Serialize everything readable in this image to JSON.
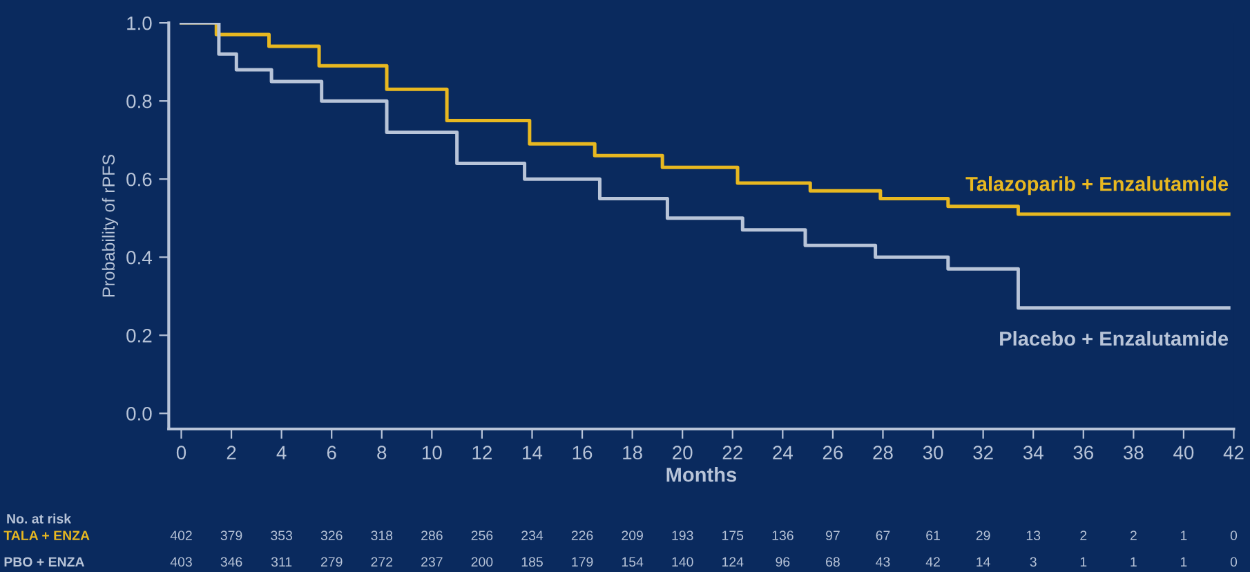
{
  "chart_data": {
    "type": "step",
    "xlabel": "Months",
    "ylabel": "Probability of rPFS",
    "xlim": [
      -0.5,
      42
    ],
    "ylim": [
      -0.04,
      1.0
    ],
    "xticks": [
      0,
      2,
      4,
      6,
      8,
      10,
      12,
      14,
      16,
      18,
      20,
      22,
      24,
      26,
      28,
      30,
      32,
      34,
      36,
      38,
      40,
      42
    ],
    "yticks": [
      {
        "value": 0,
        "label": "0.0"
      },
      0.2,
      0.4,
      0.6,
      0.8,
      {
        "value": 1,
        "label": "1.0"
      }
    ],
    "grid": false,
    "legend": false,
    "series": [
      {
        "name": "Talazoparib + Enzalutamide",
        "color": "#e8b820",
        "x": [
          0,
          1.4,
          3.5,
          5.5,
          8.2,
          10.6,
          13.9,
          16.5,
          19.2,
          22.2,
          25.1,
          27.9,
          30.6,
          33.4,
          41.8
        ],
        "values": [
          1.0,
          0.97,
          0.94,
          0.89,
          0.83,
          0.75,
          0.69,
          0.66,
          0.63,
          0.59,
          0.57,
          0.55,
          0.53,
          0.51,
          0.51
        ]
      },
      {
        "name": "Placebo + Enzalutamide",
        "color": "#b8c4d8",
        "x": [
          0,
          1.5,
          2.2,
          3.6,
          5.6,
          8.2,
          11.0,
          13.7,
          16.7,
          19.4,
          22.4,
          24.9,
          27.7,
          30.6,
          33.4,
          41.8
        ],
        "values": [
          1.0,
          0.92,
          0.88,
          0.85,
          0.8,
          0.72,
          0.64,
          0.6,
          0.55,
          0.5,
          0.47,
          0.43,
          0.4,
          0.37,
          0.27,
          0.27
        ]
      }
    ],
    "annotations": [
      "No. at risk",
      "TALA + ENZA",
      "402 379 353 326 318 286 256 234 226 209 193 175 136 97 67 61 29 13 2 2 1 0",
      "PBO + ENZA",
      "403 346 311 279 272 237 200 185 179 154 140 124 96 68 43 42 14 3 1 1 1 0"
    ]
  }
}
